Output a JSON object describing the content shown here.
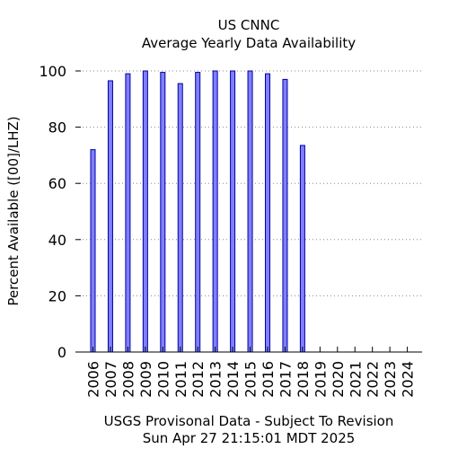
{
  "chart_data": {
    "type": "bar",
    "title": "US CNNC",
    "subtitle": "Average Yearly Data Availability",
    "ylabel": "Percent Available ([00]/LHZ)",
    "xlabel": "",
    "ylim": [
      0,
      100
    ],
    "yticks": [
      0,
      20,
      40,
      60,
      80,
      100
    ],
    "grid": true,
    "categories": [
      "2006",
      "2007",
      "2008",
      "2009",
      "2010",
      "2011",
      "2012",
      "2013",
      "2014",
      "2015",
      "2016",
      "2017",
      "2018",
      "2019",
      "2020",
      "2021",
      "2022",
      "2023",
      "2024"
    ],
    "values": [
      72,
      96.5,
      99,
      100,
      99.5,
      95.5,
      99.5,
      100,
      100,
      100,
      99,
      97,
      73.5,
      null,
      null,
      null,
      null,
      null,
      null
    ],
    "bar_color": "#7f7fff",
    "bar_stroke": "#0000a0"
  },
  "footer": {
    "line1": "USGS Provisonal Data - Subject To Revision",
    "line2": "Sun Apr 27 21:15:01 MDT 2025"
  }
}
